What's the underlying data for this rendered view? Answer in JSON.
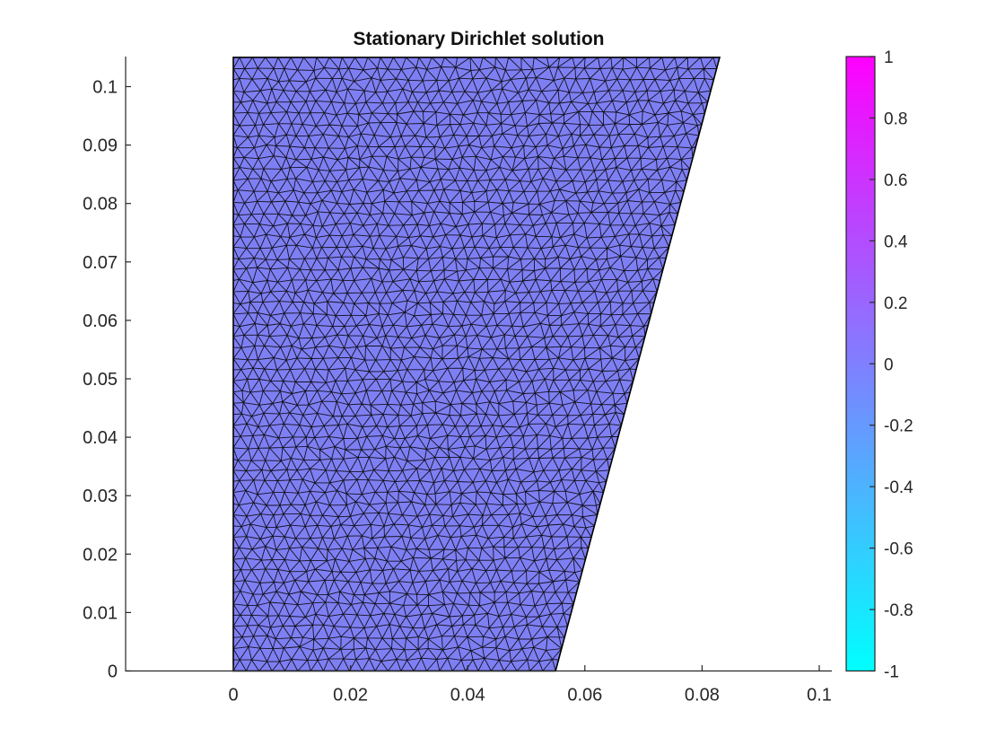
{
  "figure": {
    "background": "#ffffff"
  },
  "chart_data": {
    "type": "mesh",
    "title": "Stationary Dirichlet solution",
    "xlabel": "",
    "ylabel": "",
    "xlim": [
      -0.0185,
      0.102
    ],
    "ylim": [
      0,
      0.105
    ],
    "grid": false,
    "axis_color": "#262626",
    "x_ticks": {
      "values": [
        0,
        0.02,
        0.04,
        0.06,
        0.08,
        0.1
      ],
      "labels": [
        "0",
        "0.02",
        "0.04",
        "0.06",
        "0.08",
        "0.1"
      ]
    },
    "y_ticks": {
      "values": [
        0,
        0.01,
        0.02,
        0.03,
        0.04,
        0.05,
        0.06,
        0.07,
        0.08,
        0.09,
        0.1
      ],
      "labels": [
        "0",
        "0.01",
        "0.02",
        "0.03",
        "0.04",
        "0.05",
        "0.06",
        "0.07",
        "0.08",
        "0.09",
        "0.1"
      ]
    },
    "domain_polygon": [
      [
        0,
        0
      ],
      [
        0.055,
        0
      ],
      [
        0.083,
        0.105
      ],
      [
        0,
        0.105
      ]
    ],
    "mesh": {
      "element_size": 0.0022,
      "fill_color": "#7f7ff4",
      "edge_color": "#12121f",
      "outline_color": "#000000"
    },
    "solution_value": 0,
    "colorbar": {
      "limits": [
        -1,
        1
      ],
      "colormap": "cool",
      "top_color": "#ff00ff",
      "bottom_color": "#00ffff",
      "ticks": {
        "values": [
          1,
          0.8,
          0.6,
          0.4,
          0.2,
          0,
          -0.2,
          -0.4,
          -0.6,
          -0.8,
          -1
        ],
        "labels": [
          "1",
          "0.8",
          "0.6",
          "0.4",
          "0.2",
          "0",
          "-0.2",
          "-0.4",
          "-0.6",
          "-0.8",
          "-1"
        ]
      }
    }
  }
}
